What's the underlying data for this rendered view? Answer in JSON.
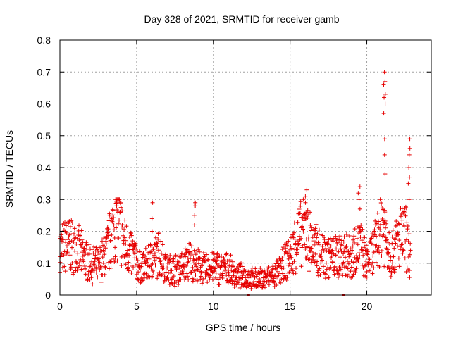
{
  "chart_data": {
    "type": "scatter",
    "title": "Day 328 of 2021, SRMTID for receiver gamb",
    "xlabel": "GPS time / hours",
    "ylabel": "SRMTID / TECUs",
    "xlim": [
      0,
      24.2
    ],
    "ylim": [
      0,
      0.8
    ],
    "xticks": [
      0,
      5,
      10,
      15,
      20
    ],
    "yticks": [
      0,
      0.1,
      0.2,
      0.3,
      0.4,
      0.5,
      0.6,
      0.7,
      0.8
    ],
    "xtick_labels": [
      "0",
      "5",
      "10",
      "15",
      "20"
    ],
    "ytick_labels": [
      "0",
      "0.1",
      "0.2",
      "0.3",
      "0.4",
      "0.5",
      "0.6",
      "0.7",
      "0.8"
    ],
    "grid": true,
    "marker": "plus",
    "color": "#e60000",
    "baseline_trend": [
      [
        0.0,
        0.14
      ],
      [
        0.5,
        0.16
      ],
      [
        1.0,
        0.15
      ],
      [
        1.5,
        0.12
      ],
      [
        2.0,
        0.1
      ],
      [
        2.5,
        0.09
      ],
      [
        3.0,
        0.13
      ],
      [
        3.5,
        0.21
      ],
      [
        3.8,
        0.24
      ],
      [
        4.2,
        0.16
      ],
      [
        4.8,
        0.12
      ],
      [
        5.3,
        0.08
      ],
      [
        6.0,
        0.11
      ],
      [
        6.5,
        0.13
      ],
      [
        7.0,
        0.08
      ],
      [
        7.5,
        0.08
      ],
      [
        8.0,
        0.09
      ],
      [
        8.5,
        0.11
      ],
      [
        9.0,
        0.09
      ],
      [
        9.5,
        0.08
      ],
      [
        10.0,
        0.09
      ],
      [
        11.0,
        0.08
      ],
      [
        11.5,
        0.06
      ],
      [
        12.0,
        0.06
      ],
      [
        12.5,
        0.05
      ],
      [
        13.0,
        0.05
      ],
      [
        14.0,
        0.06
      ],
      [
        14.5,
        0.09
      ],
      [
        15.0,
        0.12
      ],
      [
        15.5,
        0.18
      ],
      [
        16.0,
        0.2
      ],
      [
        16.5,
        0.15
      ],
      [
        17.0,
        0.13
      ],
      [
        17.5,
        0.12
      ],
      [
        18.0,
        0.12
      ],
      [
        18.5,
        0.13
      ],
      [
        19.0,
        0.12
      ],
      [
        19.5,
        0.16
      ],
      [
        20.0,
        0.1
      ],
      [
        20.5,
        0.14
      ],
      [
        21.0,
        0.24
      ],
      [
        21.3,
        0.18
      ],
      [
        21.6,
        0.12
      ],
      [
        22.0,
        0.17
      ],
      [
        22.5,
        0.19
      ],
      [
        22.8,
        0.12
      ]
    ],
    "spikes": [
      {
        "x": 21.15,
        "values": [
          0.38,
          0.44,
          0.49,
          0.57,
          0.6,
          0.62,
          0.63,
          0.66,
          0.67,
          0.7
        ]
      },
      {
        "x": 22.75,
        "values": [
          0.3,
          0.35,
          0.37,
          0.4,
          0.44,
          0.46,
          0.49
        ]
      },
      {
        "x": 19.5,
        "values": [
          0.27,
          0.3,
          0.32,
          0.34
        ]
      },
      {
        "x": 16.05,
        "values": [
          0.26,
          0.29,
          0.31,
          0.33
        ]
      },
      {
        "x": 8.8,
        "values": [
          0.22,
          0.25,
          0.28,
          0.29
        ]
      },
      {
        "x": 6.0,
        "values": [
          0.2,
          0.24,
          0.29
        ]
      },
      {
        "x": 3.75,
        "values": [
          0.26,
          0.28,
          0.29
        ]
      }
    ],
    "floor_points": [
      [
        12.3,
        0.0
      ],
      [
        18.5,
        0.0
      ]
    ]
  }
}
